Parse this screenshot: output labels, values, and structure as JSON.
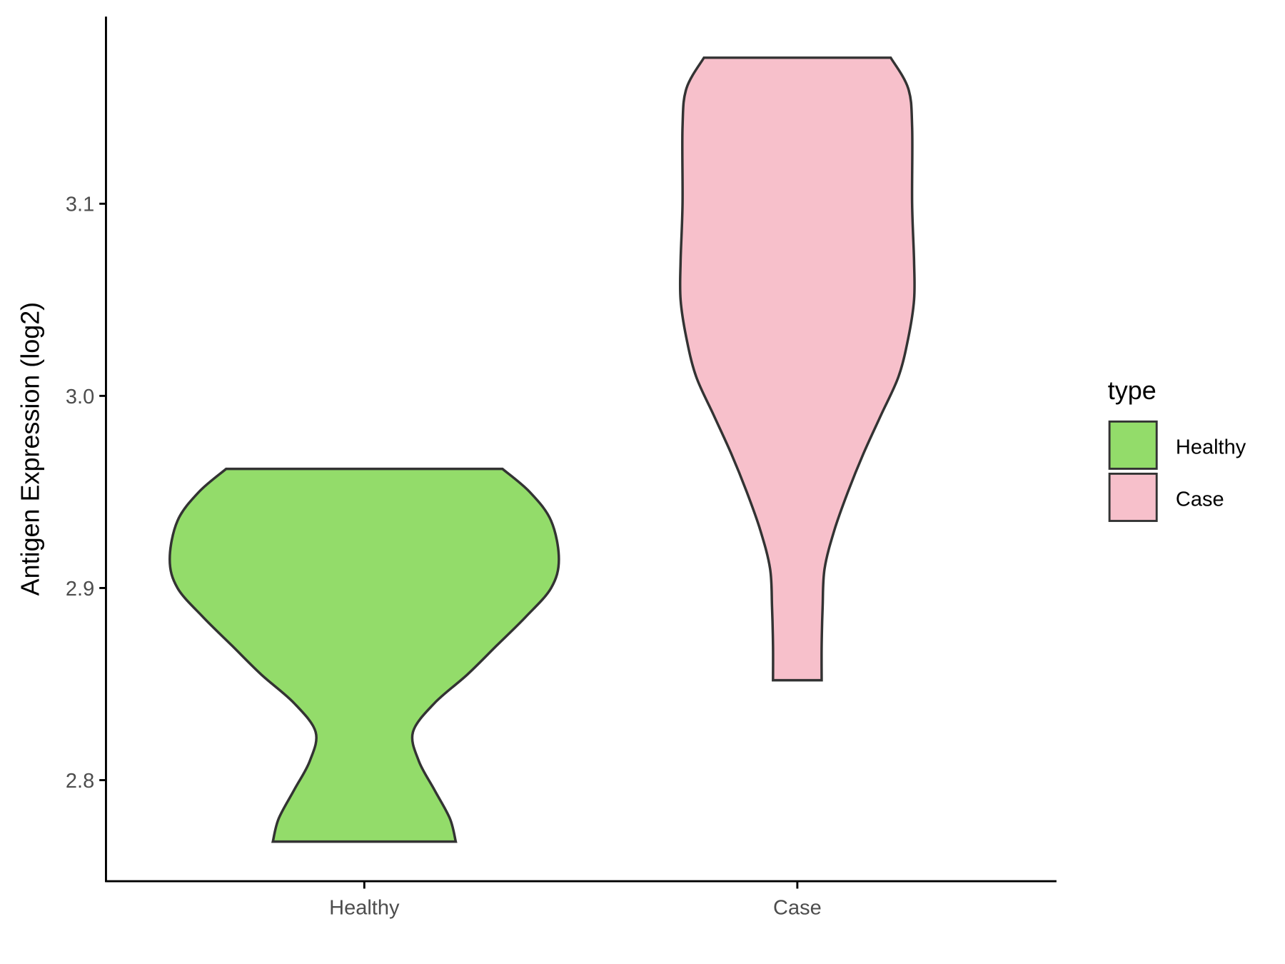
{
  "chart_data": {
    "type": "violin",
    "title": "",
    "xlabel": "",
    "ylabel": "Antigen Expression (log2)",
    "categories": [
      "Healthy",
      "Case"
    ],
    "yticks": [
      2.8,
      2.9,
      3.0,
      3.1
    ],
    "ytick_labels": [
      "2.8",
      "2.9",
      "3.0",
      "3.1"
    ],
    "ylim": [
      2.748,
      3.198
    ],
    "grid": false,
    "legend": {
      "title": "type",
      "position": "right",
      "entries": [
        "Healthy",
        "Case"
      ]
    },
    "colors": {
      "Healthy": "#93DC6A",
      "Case": "#F7C0CB",
      "outline": "#333333"
    },
    "series": [
      {
        "name": "Healthy",
        "min": 2.768,
        "max": 2.962,
        "profile": [
          [
            2.962,
            0.71
          ],
          [
            2.95,
            0.85
          ],
          [
            2.935,
            0.96
          ],
          [
            2.915,
            1.0
          ],
          [
            2.9,
            0.96
          ],
          [
            2.885,
            0.83
          ],
          [
            2.87,
            0.68
          ],
          [
            2.855,
            0.53
          ],
          [
            2.84,
            0.36
          ],
          [
            2.825,
            0.25
          ],
          [
            2.81,
            0.28
          ],
          [
            2.795,
            0.36
          ],
          [
            2.78,
            0.44
          ],
          [
            2.768,
            0.47
          ]
        ]
      },
      {
        "name": "Case",
        "min": 2.852,
        "max": 3.176,
        "profile": [
          [
            3.176,
            0.48
          ],
          [
            3.16,
            0.57
          ],
          [
            3.14,
            0.59
          ],
          [
            3.1,
            0.59
          ],
          [
            3.07,
            0.6
          ],
          [
            3.05,
            0.6
          ],
          [
            3.03,
            0.57
          ],
          [
            3.01,
            0.52
          ],
          [
            2.99,
            0.43
          ],
          [
            2.97,
            0.34
          ],
          [
            2.95,
            0.26
          ],
          [
            2.93,
            0.19
          ],
          [
            2.91,
            0.14
          ],
          [
            2.89,
            0.13
          ],
          [
            2.87,
            0.125
          ],
          [
            2.852,
            0.125
          ]
        ]
      }
    ]
  }
}
